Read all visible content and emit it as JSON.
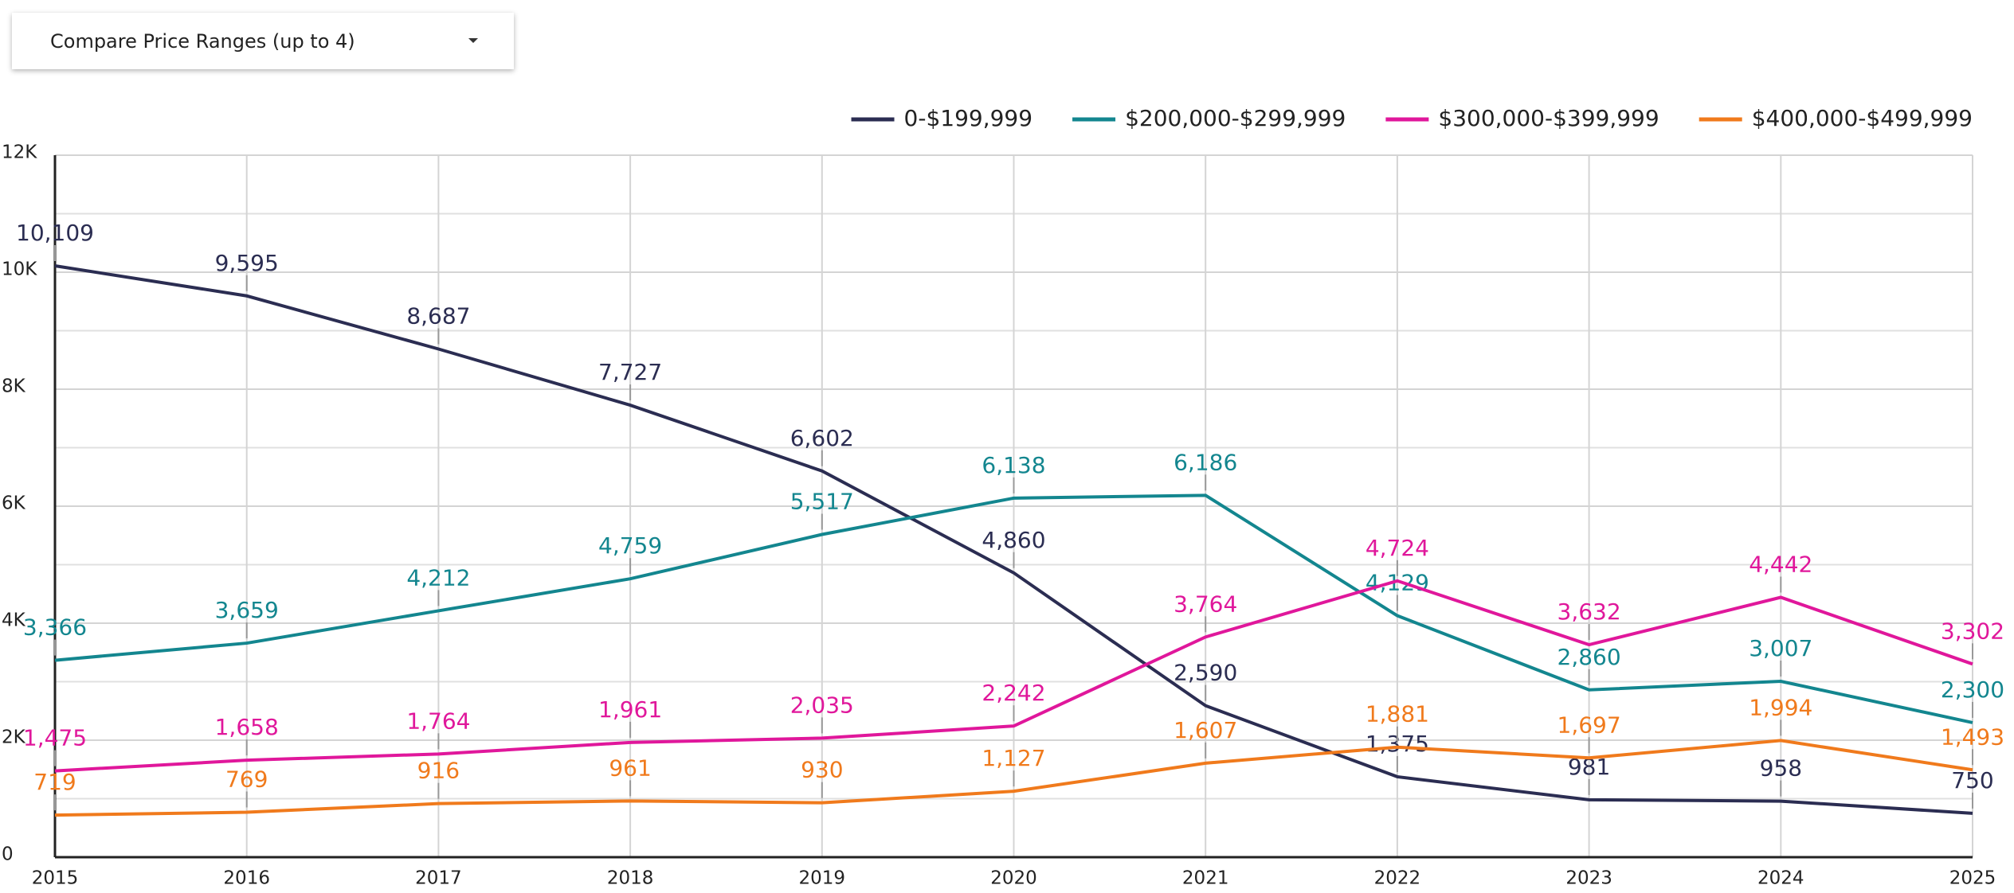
{
  "dropdown": {
    "label": "Compare Price Ranges (up to 4)"
  },
  "chart_data": {
    "type": "line",
    "categories": [
      "2015",
      "2016",
      "2017",
      "2018",
      "2019",
      "2020",
      "2021",
      "2022",
      "2023",
      "2024",
      "2025"
    ],
    "series": [
      {
        "name": "0-$199,999",
        "color": "#2b2d52",
        "values": [
          10109,
          9595,
          8687,
          7727,
          6602,
          4860,
          2590,
          1375,
          981,
          958,
          750
        ],
        "value_labels": [
          "10,109",
          "9,595",
          "8,687",
          "7,727",
          "6,602",
          "4,860",
          "2,590",
          "1,375",
          "981",
          "958",
          "750"
        ]
      },
      {
        "name": "$200,000-$299,999",
        "color": "#13868f",
        "values": [
          3366,
          3659,
          4212,
          4759,
          5517,
          6138,
          6186,
          4129,
          2860,
          3007,
          2300
        ],
        "value_labels": [
          "3,366",
          "3,659",
          "4,212",
          "4,759",
          "5,517",
          "6,138",
          "6,186",
          "4,129",
          "2,860",
          "3,007",
          "2,300"
        ]
      },
      {
        "name": "$300,000-$399,999",
        "color": "#e0179b",
        "values": [
          1475,
          1658,
          1764,
          1961,
          2035,
          2242,
          3764,
          4724,
          3632,
          4442,
          3302
        ],
        "value_labels": [
          "1,475",
          "1,658",
          "1,764",
          "1,961",
          "2,035",
          "2,242",
          "3,764",
          "4,724",
          "3,632",
          "4,442",
          "3,302"
        ]
      },
      {
        "name": "$400,000-$499,999",
        "color": "#f07a1c",
        "values": [
          719,
          769,
          916,
          961,
          930,
          1127,
          1607,
          1881,
          1697,
          1994,
          1493
        ],
        "value_labels": [
          "719",
          "769",
          "916",
          "961",
          "930",
          "1,127",
          "1,607",
          "1,881",
          "1,697",
          "1,994",
          "1,493"
        ]
      }
    ],
    "ylim": [
      0,
      12000
    ],
    "yticks": [
      0,
      {
        "value": 2000,
        "label": "2K"
      },
      {
        "value": 4000,
        "label": "4K"
      },
      {
        "value": 6000,
        "label": "6K"
      },
      {
        "value": 8000,
        "label": "8K"
      },
      {
        "value": 10000,
        "label": "10K"
      },
      {
        "value": 12000,
        "label": "12K"
      }
    ],
    "grid": true,
    "minor_grid": true,
    "legend": "top-right"
  }
}
